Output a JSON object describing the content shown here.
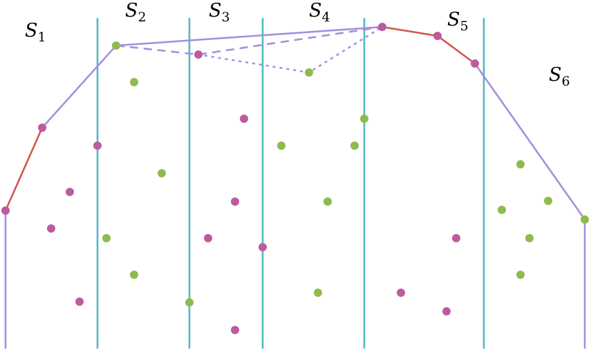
{
  "slabs": [
    {
      "name": "S",
      "sub": "1"
    },
    {
      "name": "S",
      "sub": "2"
    },
    {
      "name": "S",
      "sub": "3"
    },
    {
      "name": "S",
      "sub": "4"
    },
    {
      "name": "S",
      "sub": "5"
    },
    {
      "name": "S",
      "sub": "6"
    }
  ],
  "colors": {
    "divider": "#52b8c4",
    "hull_purple": "#a58ee0",
    "hull_red": "#d0564a",
    "point_magenta": "#be5a9e",
    "point_green": "#8cbc4c"
  }
}
